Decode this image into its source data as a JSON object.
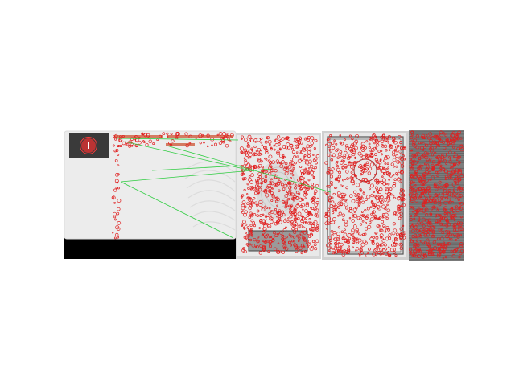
{
  "figure": {
    "description_type": "feature-matching visualization",
    "panels": [
      {
        "id": "card-left",
        "kind": "id-card-front"
      },
      {
        "id": "passport-inner",
        "kind": "document-page"
      },
      {
        "id": "passport-cover",
        "kind": "document-cover"
      },
      {
        "id": "texture-strip",
        "kind": "textured-image"
      }
    ],
    "keypoint_color": "#e02020",
    "match_line_color": "#2ecc40",
    "match_count": 6
  }
}
